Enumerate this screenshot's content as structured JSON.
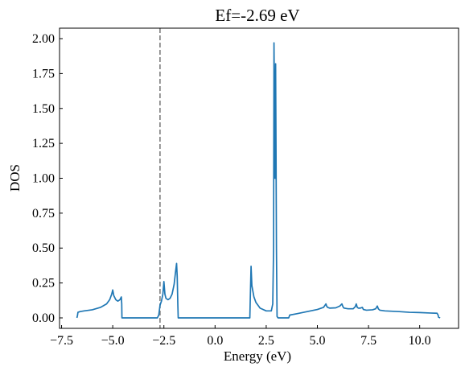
{
  "chart_data": {
    "type": "line",
    "title": "Ef=-2.69 eV",
    "xlabel": "Energy (eV)",
    "ylabel": "DOS",
    "xlim": [
      -7.6,
      11.9
    ],
    "ylim": [
      -0.075,
      2.075
    ],
    "grid": false,
    "x_ticks": [
      {
        "value": -7.5,
        "label": "−7.5"
      },
      {
        "value": -5.0,
        "label": "−5.0"
      },
      {
        "value": -2.5,
        "label": "−2.5"
      },
      {
        "value": 0.0,
        "label": "0.0"
      },
      {
        "value": 2.5,
        "label": "2.5"
      },
      {
        "value": 5.0,
        "label": "5.0"
      },
      {
        "value": 7.5,
        "label": "7.5"
      },
      {
        "value": 10.0,
        "label": "10.0"
      }
    ],
    "y_ticks": [
      {
        "value": 0.0,
        "label": "0.00"
      },
      {
        "value": 0.25,
        "label": "0.25"
      },
      {
        "value": 0.5,
        "label": "0.50"
      },
      {
        "value": 0.75,
        "label": "0.75"
      },
      {
        "value": 1.0,
        "label": "1.00"
      },
      {
        "value": 1.25,
        "label": "1.25"
      },
      {
        "value": 1.5,
        "label": "1.50"
      },
      {
        "value": 1.75,
        "label": "1.75"
      },
      {
        "value": 2.0,
        "label": "2.00"
      }
    ],
    "fermi_level": {
      "x": -2.69,
      "color": "#7f7f7f",
      "style": "dashed"
    },
    "series": [
      {
        "color": "#1f77b4",
        "x": [
          -6.75,
          -6.72,
          -6.7,
          -6.6,
          -6.4,
          -6.0,
          -5.6,
          -5.3,
          -5.15,
          -5.05,
          -5.0,
          -4.95,
          -4.85,
          -4.75,
          -4.65,
          -4.58,
          -4.56,
          -4.55,
          -4.5,
          -3.0,
          -2.82,
          -2.75,
          -2.69,
          -2.62,
          -2.55,
          -2.5,
          -2.45,
          -2.4,
          -2.3,
          -2.2,
          -2.1,
          -2.0,
          -1.93,
          -1.88,
          -1.85,
          -1.82,
          -1.8,
          1.6,
          1.7,
          1.73,
          1.76,
          1.8,
          1.9,
          2.0,
          2.2,
          2.5,
          2.75,
          2.82,
          2.86,
          2.88,
          2.9,
          2.93,
          2.96,
          2.98,
          3.0,
          3.03,
          3.08,
          3.6,
          3.65,
          4.0,
          4.5,
          5.0,
          5.3,
          5.42,
          5.45,
          5.5,
          5.6,
          5.9,
          6.1,
          6.2,
          6.25,
          6.3,
          6.5,
          6.75,
          6.85,
          6.9,
          6.95,
          7.0,
          7.1,
          7.2,
          7.25,
          7.4,
          7.7,
          7.85,
          7.93,
          7.98,
          8.05,
          8.3,
          9.0,
          9.5,
          10.0,
          10.5,
          10.85,
          10.9,
          10.92,
          11.0
        ],
        "y": [
          0.0,
          0.02,
          0.04,
          0.045,
          0.05,
          0.058,
          0.075,
          0.1,
          0.13,
          0.17,
          0.2,
          0.16,
          0.13,
          0.12,
          0.13,
          0.15,
          0.1,
          0.0,
          0.0,
          0.0,
          0.0,
          0.02,
          0.09,
          0.12,
          0.17,
          0.26,
          0.17,
          0.14,
          0.13,
          0.14,
          0.17,
          0.24,
          0.33,
          0.39,
          0.3,
          0.1,
          0.0,
          0.0,
          0.0,
          0.19,
          0.37,
          0.23,
          0.15,
          0.11,
          0.07,
          0.05,
          0.05,
          0.1,
          0.5,
          1.97,
          1.6,
          1.0,
          1.82,
          1.2,
          0.5,
          0.01,
          0.0,
          0.0,
          0.02,
          0.03,
          0.045,
          0.06,
          0.075,
          0.1,
          0.085,
          0.075,
          0.07,
          0.072,
          0.085,
          0.1,
          0.08,
          0.07,
          0.065,
          0.065,
          0.08,
          0.1,
          0.075,
          0.07,
          0.07,
          0.075,
          0.06,
          0.055,
          0.058,
          0.065,
          0.085,
          0.065,
          0.055,
          0.05,
          0.045,
          0.04,
          0.038,
          0.035,
          0.033,
          0.02,
          0.005,
          0.0
        ]
      }
    ]
  }
}
